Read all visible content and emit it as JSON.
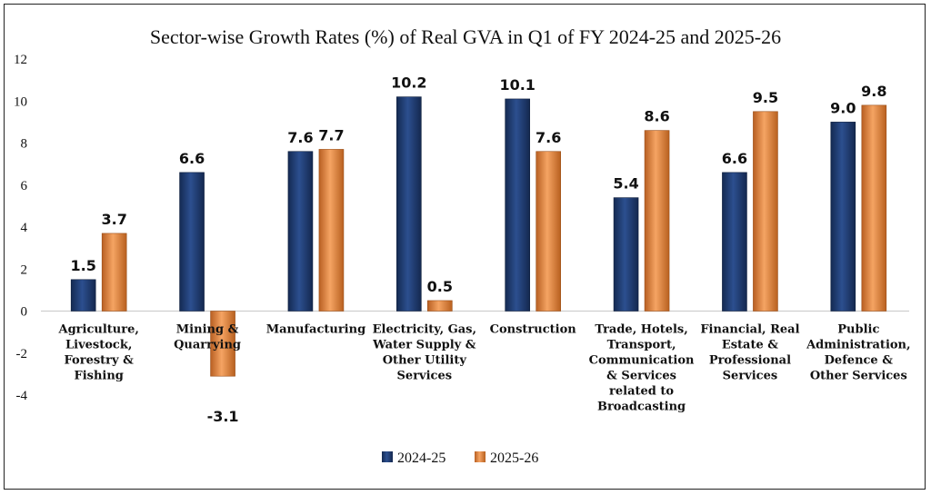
{
  "chart_data": {
    "type": "bar",
    "title": "Sector-wise Growth Rates (%) of Real GVA in Q1 of FY 2024-25 and 2025-26",
    "xlabel": "",
    "ylabel": "",
    "ylim": [
      -4,
      12
    ],
    "yticks": [
      12,
      10,
      8,
      6,
      4,
      2,
      0,
      -2,
      -4
    ],
    "grid": false,
    "legend_position": "bottom",
    "categories": [
      [
        "Agriculture,",
        "Livestock,",
        "Forestry &",
        "Fishing"
      ],
      [
        "Mining &",
        "Quarrying"
      ],
      [
        "Manufacturing"
      ],
      [
        "Electricity, Gas,",
        "Water Supply &",
        "Other Utility",
        "Services"
      ],
      [
        "Construction"
      ],
      [
        "Trade, Hotels,",
        "Transport,",
        "Communication",
        "& Services",
        "related to",
        "Broadcasting"
      ],
      [
        "Financial, Real",
        "Estate &",
        "Professional",
        "Services"
      ],
      [
        "Public",
        "Administration,",
        "Defence &",
        "Other Services"
      ]
    ],
    "series": [
      {
        "name": "2024-25",
        "color": "#1f3a6e",
        "values": [
          1.5,
          6.6,
          7.6,
          10.2,
          10.1,
          5.4,
          6.6,
          9.0
        ],
        "labels": [
          "1.5",
          "6.6",
          "7.6",
          "10.2",
          "10.1",
          "5.4",
          "6.6",
          "9.0"
        ]
      },
      {
        "name": "2025-26",
        "color": "#e0853c",
        "values": [
          3.7,
          -3.1,
          7.7,
          0.5,
          7.6,
          8.6,
          9.5,
          9.8
        ],
        "labels": [
          "3.7",
          "-3.1",
          "7.7",
          "0.5",
          "7.6",
          "8.6",
          "9.5",
          "9.8"
        ]
      }
    ]
  }
}
